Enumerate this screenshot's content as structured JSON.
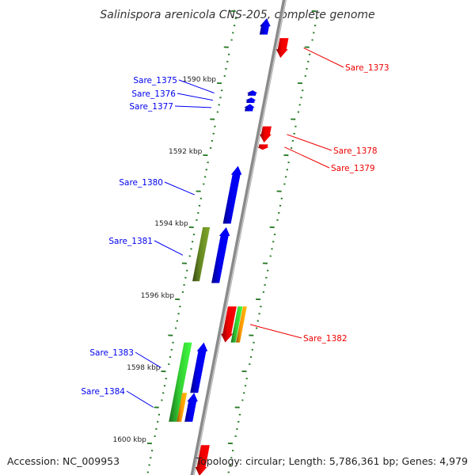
{
  "title": "Salinispora arenicola CNS-205, complete genome",
  "footer": {
    "accession": "Accession: NC_009953",
    "topology": "Topology: circular; Length: 5,786,361 bp; Genes: 4,979"
  },
  "colors": {
    "plus_strand": "#0000ee",
    "minus_strand": "#ee0000",
    "hit_green": "#33cc33",
    "hit_orange": "#ff9900",
    "hit_olive": "#668822",
    "backbone": "#8a8a8a",
    "tick": "#227722"
  },
  "scale": {
    "unit": "kbp",
    "tick_labels": [
      {
        "kbp": 1590,
        "label": "1590 kbp"
      },
      {
        "kbp": 1592,
        "label": "1592 kbp"
      },
      {
        "kbp": 1594,
        "label": "1594 kbp"
      },
      {
        "kbp": 1596,
        "label": "1596 kbp"
      },
      {
        "kbp": 1598,
        "label": "1598 kbp"
      },
      {
        "kbp": 1600,
        "label": "1600 kbp"
      }
    ]
  },
  "genes": [
    {
      "name": "Sare_1373",
      "strand": "minus",
      "start_kbp": 1588.75,
      "end_kbp": 1589.3
    },
    {
      "name": "Sare_1375",
      "strand": "plus",
      "start_kbp": 1590.2,
      "end_kbp": 1590.35
    },
    {
      "name": "Sare_1376",
      "strand": "plus",
      "start_kbp": 1590.4,
      "end_kbp": 1590.55
    },
    {
      "name": "Sare_1377",
      "strand": "plus",
      "start_kbp": 1590.58,
      "end_kbp": 1590.78
    },
    {
      "name": "Sare_1378",
      "strand": "minus",
      "start_kbp": 1591.2,
      "end_kbp": 1591.65
    },
    {
      "name": "Sare_1379",
      "strand": "minus",
      "start_kbp": 1591.7,
      "end_kbp": 1591.85
    },
    {
      "name": "Sare_1380",
      "strand": "plus",
      "start_kbp": 1592.3,
      "end_kbp": 1593.9
    },
    {
      "name": "Sare_1381",
      "strand": "plus",
      "start_kbp": 1594.0,
      "end_kbp": 1595.55
    },
    {
      "name": "Sare_1382",
      "strand": "minus",
      "start_kbp": 1596.2,
      "end_kbp": 1597.2
    },
    {
      "name": "Sare_1383",
      "strand": "plus",
      "start_kbp": 1597.2,
      "end_kbp": 1598.6
    },
    {
      "name": "Sare_1384",
      "strand": "plus",
      "start_kbp": 1598.6,
      "end_kbp": 1599.4
    }
  ],
  "clipped_genes": [
    {
      "strand": "plus",
      "start_kbp": 1588.2,
      "end_kbp": 1588.65
    },
    {
      "strand": "minus",
      "start_kbp": 1600.05,
      "end_kbp": 1600.9
    }
  ],
  "hits": [
    {
      "kind": "olive",
      "start_kbp": 1594.0,
      "end_kbp": 1595.5
    },
    {
      "kind": "green",
      "start_kbp": 1596.2,
      "end_kbp": 1597.2
    },
    {
      "kind": "orange",
      "start_kbp": 1596.2,
      "end_kbp": 1597.2
    },
    {
      "kind": "green",
      "start_kbp": 1597.2,
      "end_kbp": 1599.4
    },
    {
      "kind": "orange",
      "start_kbp": 1598.6,
      "end_kbp": 1599.4
    }
  ]
}
